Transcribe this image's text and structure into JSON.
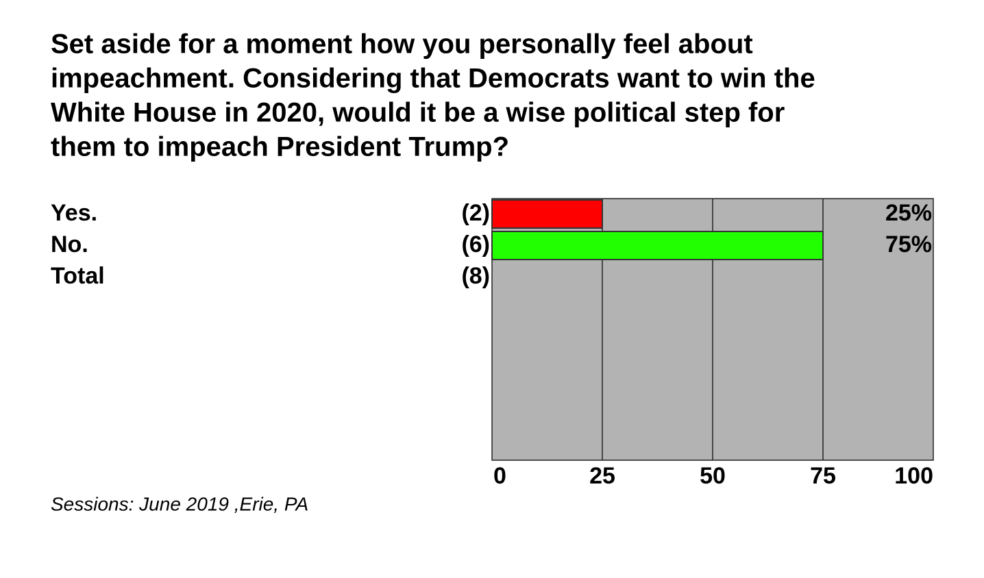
{
  "chart_data": {
    "type": "bar",
    "title": [
      "Set aside for a moment how you personally feel about",
      "impeachment. Considering that Democrats want to win the",
      "White House in 2020, would it be a wise political step for",
      "them to impeach President Trump?"
    ],
    "categories": [
      "Yes.",
      "No.",
      "Total"
    ],
    "counts": [
      2,
      6,
      8
    ],
    "count_labels": [
      "(2)",
      "(6)",
      "(8)"
    ],
    "values": [
      25,
      75,
      null
    ],
    "value_labels": [
      "25%",
      "75%",
      null
    ],
    "colors": [
      "#ff0000",
      "#22ff00",
      null
    ],
    "xlim": [
      0,
      100
    ],
    "xticks": [
      0,
      25,
      50,
      75,
      100
    ],
    "grid": true,
    "plot_background": "#b3b3b3",
    "note": "Sessions: June 2019 ,Erie, PA"
  }
}
